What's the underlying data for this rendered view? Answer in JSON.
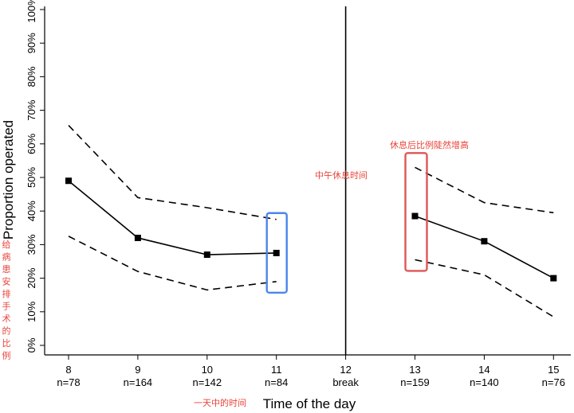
{
  "chart_data": {
    "type": "line",
    "xlabel": "Time of the day",
    "ylabel": "Proportion operated",
    "ylim": [
      0,
      100
    ],
    "yticks": [
      "0%",
      "10%",
      "20%",
      "30%",
      "40%",
      "50%",
      "60%",
      "70%",
      "80%",
      "90%",
      "100%"
    ],
    "x_categories": [
      "8",
      "9",
      "10",
      "11",
      "12",
      "13",
      "14",
      "15"
    ],
    "x_sublabels": [
      "n=78",
      "n=164",
      "n=142",
      "n=84",
      "break",
      "n=159",
      "n=140",
      "n=76"
    ],
    "break_at": "12",
    "series": [
      {
        "role": "estimate",
        "style": "solid",
        "marker": "square",
        "x": [
          8,
          9,
          10,
          11,
          13,
          14,
          15
        ],
        "y": [
          49,
          32,
          27,
          27.5,
          38.5,
          31,
          20
        ]
      },
      {
        "role": "upper-ci",
        "style": "dashed",
        "x": [
          8,
          9,
          10,
          11,
          13,
          14,
          15
        ],
        "y": [
          65.5,
          44,
          41,
          37.5,
          53,
          42.5,
          39.5
        ]
      },
      {
        "role": "lower-ci",
        "style": "dashed",
        "x": [
          8,
          9,
          10,
          11,
          13,
          14,
          15
        ],
        "y": [
          32.5,
          22,
          16.5,
          19,
          25.5,
          21,
          8.5
        ]
      }
    ],
    "grid": false,
    "colors": {
      "line": "#000000",
      "highlight_blue": "#4a86e8",
      "highlight_red": "#e05555",
      "annotation": "#e8443a"
    },
    "annotations": {
      "y_axis_note": "给病患安排手术的比例",
      "x_axis_note": "一天中的时间",
      "break_note": "中午休息时间",
      "afternoon_note": "休息后比例陡然增高"
    },
    "highlight_boxes": [
      {
        "around": "11",
        "color": "blue"
      },
      {
        "around": "13",
        "color": "red"
      }
    ]
  }
}
